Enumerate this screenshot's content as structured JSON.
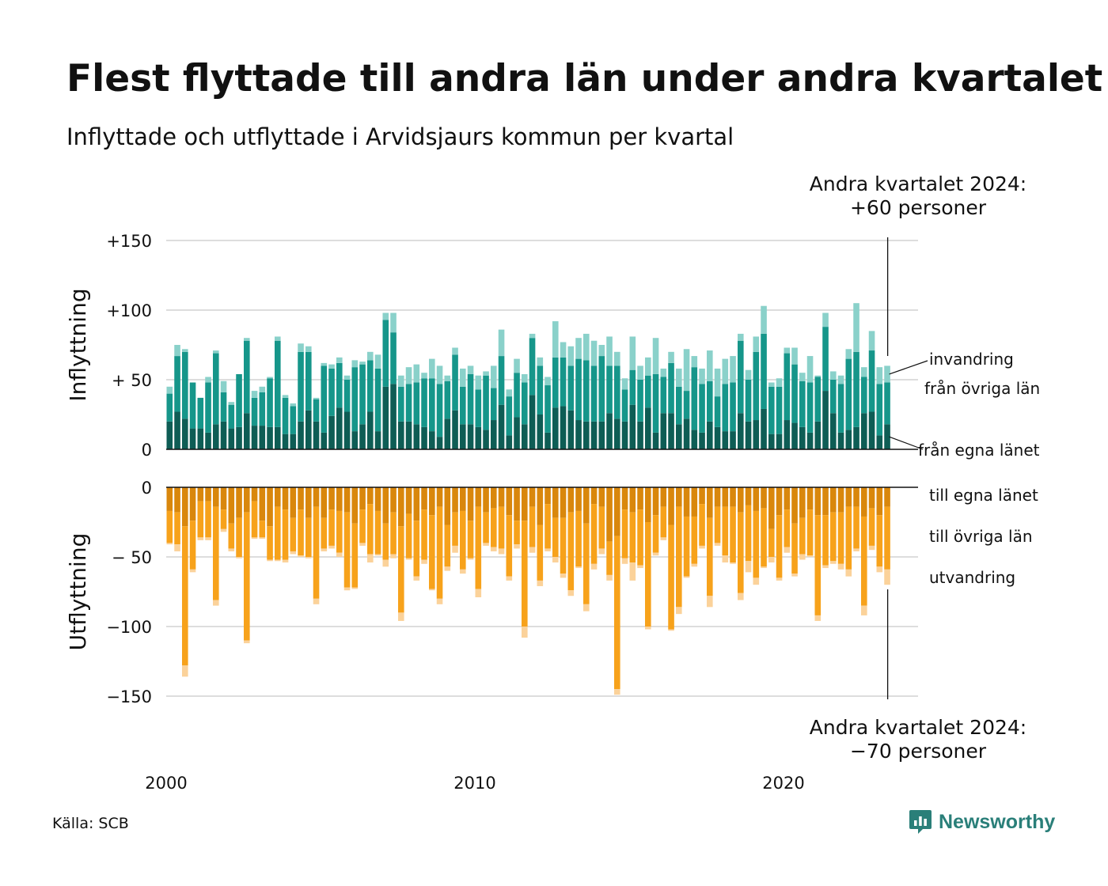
{
  "title": "Flest flyttade till andra län under andra kvartalet",
  "subtitle": "Inflyttade och utflyttade i Arvidsjaurs kommun per kvartal",
  "annotation_top": {
    "line1": "Andra kvartalet 2024:",
    "line2": "+60 personer"
  },
  "annotation_bottom": {
    "line1": "Andra kvartalet 2024:",
    "line2": "−70 personer"
  },
  "source": "Källa: SCB",
  "brand": "Newsworthy",
  "colors": {
    "in_own": "#0e5d55",
    "in_other": "#16968a",
    "in_immig": "#8ad1ca",
    "out_own": "#d9870c",
    "out_other": "#f7a21b",
    "out_emig": "#fbd29a",
    "grid": "#dddddd",
    "brand": "#2a7f79"
  },
  "chart_data": {
    "type": "bar",
    "stacked": true,
    "x_start": {
      "year": 2000,
      "quarter": 1
    },
    "x_ticks": [
      "2000",
      "2010",
      "2020"
    ],
    "inflow": {
      "ylabel": "Inflyttning",
      "yticks": [
        "0",
        "+ 50",
        "+100",
        "+150"
      ],
      "tick_values": [
        0,
        50,
        100,
        150
      ],
      "ylim": [
        0,
        150
      ],
      "series": [
        {
          "name": "från egna länet",
          "values": [
            20,
            27,
            22,
            15,
            15,
            12,
            18,
            20,
            15,
            16,
            26,
            17,
            17,
            16,
            16,
            11,
            11,
            20,
            28,
            20,
            12,
            24,
            30,
            27,
            13,
            18,
            27,
            13,
            45,
            47,
            20,
            20,
            18,
            16,
            13,
            9,
            22,
            28,
            18,
            18,
            16,
            14,
            21,
            32,
            10,
            23,
            18,
            39,
            25,
            12,
            30,
            31,
            28,
            21,
            20,
            20,
            20,
            26,
            22,
            20,
            32,
            20,
            30,
            12,
            26,
            26,
            18,
            22,
            14,
            12,
            20,
            16,
            13,
            13,
            26,
            20,
            21,
            29,
            11,
            11,
            21,
            19,
            16,
            12,
            20,
            42,
            26,
            12,
            14,
            16,
            26,
            27,
            10,
            18
          ]
        },
        {
          "name": "från övriga län",
          "values": [
            20,
            40,
            48,
            33,
            22,
            36,
            51,
            21,
            17,
            38,
            52,
            20,
            24,
            35,
            62,
            26,
            20,
            50,
            42,
            16,
            48,
            34,
            32,
            23,
            46,
            43,
            37,
            45,
            48,
            37,
            25,
            27,
            30,
            35,
            38,
            38,
            27,
            40,
            27,
            36,
            27,
            39,
            23,
            35,
            28,
            32,
            30,
            41,
            35,
            34,
            36,
            35,
            32,
            44,
            44,
            40,
            47,
            34,
            38,
            23,
            25,
            30,
            23,
            42,
            26,
            36,
            27,
            20,
            45,
            35,
            29,
            22,
            34,
            35,
            52,
            30,
            49,
            54,
            34,
            34,
            48,
            42,
            33,
            36,
            32,
            46,
            24,
            35,
            51,
            54,
            26,
            44,
            37,
            30
          ]
        },
        {
          "name": "invandring",
          "values": [
            5,
            8,
            2,
            0,
            0,
            4,
            2,
            8,
            2,
            0,
            2,
            5,
            4,
            1,
            3,
            2,
            2,
            6,
            4,
            1,
            2,
            3,
            4,
            3,
            5,
            2,
            6,
            10,
            5,
            14,
            8,
            12,
            13,
            4,
            14,
            13,
            4,
            5,
            13,
            6,
            10,
            3,
            16,
            19,
            5,
            10,
            6,
            3,
            6,
            6,
            26,
            11,
            14,
            15,
            19,
            18,
            8,
            21,
            10,
            8,
            24,
            10,
            13,
            26,
            6,
            8,
            13,
            30,
            8,
            11,
            22,
            20,
            18,
            19,
            5,
            7,
            11,
            20,
            3,
            6,
            4,
            12,
            6,
            19,
            1,
            10,
            6,
            6,
            7,
            35,
            7,
            14,
            12,
            12
          ]
        }
      ]
    },
    "outflow": {
      "ylabel": "Utflyttning",
      "yticks": [
        "0",
        "− 50",
        "−100",
        "−150"
      ],
      "tick_values": [
        0,
        -50,
        -100,
        -150
      ],
      "ylim": [
        -150,
        0
      ],
      "series": [
        {
          "name": "till egna länet",
          "values": [
            -17,
            -18,
            -28,
            -24,
            -10,
            -10,
            -14,
            -16,
            -26,
            -22,
            -18,
            -10,
            -24,
            -28,
            -14,
            -16,
            -22,
            -16,
            -22,
            -14,
            -22,
            -16,
            -17,
            -18,
            -26,
            -16,
            -12,
            -17,
            -26,
            -18,
            -28,
            -19,
            -24,
            -16,
            -20,
            -14,
            -27,
            -18,
            -17,
            -24,
            -14,
            -18,
            -15,
            -14,
            -20,
            -24,
            -24,
            -14,
            -27,
            -12,
            -22,
            -22,
            -18,
            -17,
            -26,
            -12,
            -14,
            -39,
            -35,
            -16,
            -18,
            -16,
            -25,
            -20,
            -14,
            -27,
            -14,
            -21,
            -21,
            -12,
            -22,
            -14,
            -14,
            -14,
            -18,
            -13,
            -17,
            -15,
            -30,
            -20,
            -16,
            -26,
            -22,
            -16,
            -20,
            -20,
            -18,
            -18,
            -14,
            -14,
            -21,
            -15,
            -20,
            -14
          ]
        },
        {
          "name": "till övriga län",
          "values": [
            -23,
            -23,
            -100,
            -35,
            -26,
            -26,
            -67,
            -14,
            -18,
            -28,
            -92,
            -26,
            -12,
            -24,
            -38,
            -36,
            -24,
            -33,
            -28,
            -66,
            -22,
            -26,
            -30,
            -54,
            -46,
            -24,
            -36,
            -31,
            -26,
            -30,
            -62,
            -32,
            -40,
            -36,
            -53,
            -66,
            -30,
            -24,
            -42,
            -27,
            -59,
            -22,
            -28,
            -30,
            -44,
            -17,
            -76,
            -29,
            -40,
            -32,
            -28,
            -40,
            -56,
            -40,
            -58,
            -43,
            -30,
            -24,
            -110,
            -35,
            -36,
            -40,
            -75,
            -27,
            -22,
            -75,
            -72,
            -43,
            -34,
            -30,
            -56,
            -26,
            -35,
            -40,
            -58,
            -40,
            -48,
            -42,
            -20,
            -45,
            -27,
            -36,
            -26,
            -33,
            -72,
            -36,
            -35,
            -37,
            -45,
            -30,
            -64,
            -27,
            -37,
            -45
          ]
        },
        {
          "name": "utvandring",
          "values": [
            -1,
            -5,
            -8,
            -2,
            -2,
            -2,
            -4,
            -2,
            -2,
            -1,
            -2,
            -1,
            -1,
            -1,
            -1,
            -2,
            -2,
            -1,
            -1,
            -4,
            -2,
            -2,
            -3,
            -2,
            -1,
            -2,
            -6,
            -1,
            -5,
            -3,
            -6,
            -1,
            -3,
            -3,
            -1,
            -4,
            -3,
            -5,
            -3,
            -1,
            -6,
            -2,
            -3,
            -4,
            -3,
            -3,
            -8,
            -4,
            -4,
            -2,
            -4,
            -3,
            -4,
            -1,
            -5,
            -4,
            -4,
            -4,
            -4,
            -4,
            -13,
            -2,
            -2,
            -2,
            -2,
            -1,
            -5,
            -1,
            -2,
            -2,
            -8,
            -2,
            -5,
            -1,
            -5,
            -8,
            -5,
            -1,
            -4,
            -2,
            -4,
            -2,
            -4,
            -1,
            -4,
            -2,
            -2,
            -4,
            -5,
            -2,
            -7,
            -3,
            -4,
            -11
          ]
        }
      ]
    }
  }
}
